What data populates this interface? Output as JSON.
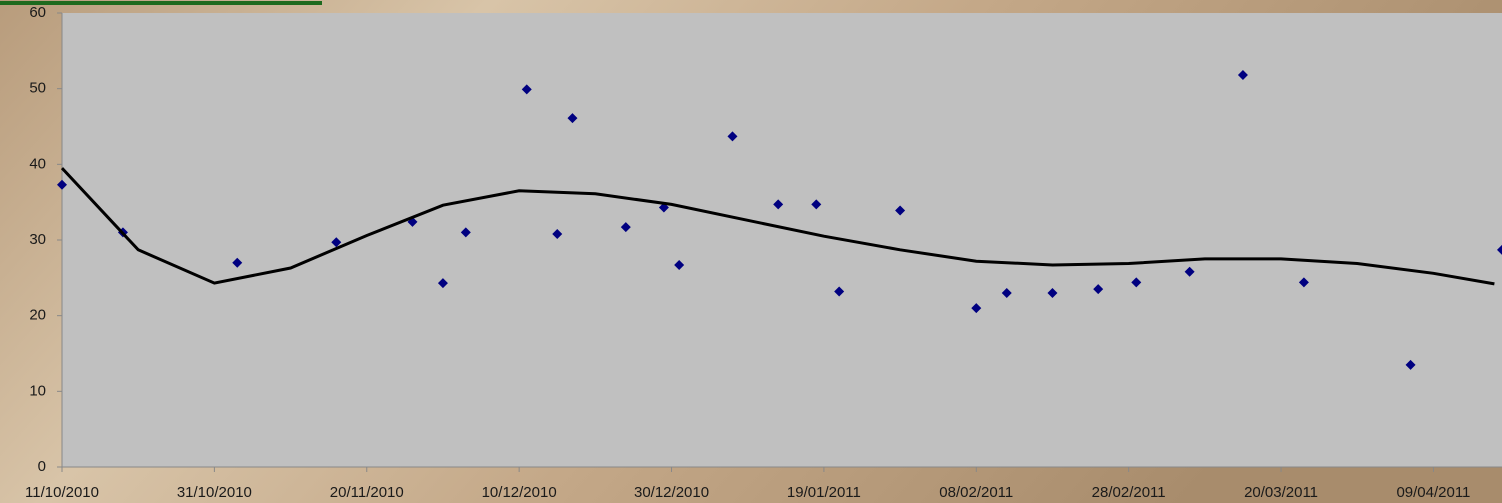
{
  "chart_data": {
    "type": "scatter",
    "xlim": [
      "2010-10-11",
      "2011-04-18"
    ],
    "ylim": [
      0,
      60
    ],
    "yticks": [
      0,
      10,
      20,
      30,
      40,
      50,
      60
    ],
    "xticks": [
      {
        "value": "2010-10-11",
        "label": "11/10/2010"
      },
      {
        "value": "2010-10-31",
        "label": "31/10/2010"
      },
      {
        "value": "2010-11-20",
        "label": "20/11/2010"
      },
      {
        "value": "2010-12-10",
        "label": "10/12/2010"
      },
      {
        "value": "2010-12-30",
        "label": "30/12/2010"
      },
      {
        "value": "2011-01-19",
        "label": "19/01/2011"
      },
      {
        "value": "2011-02-08",
        "label": "08/02/2011"
      },
      {
        "value": "2011-02-28",
        "label": "28/02/2011"
      },
      {
        "value": "2011-03-20",
        "label": "20/03/2011"
      },
      {
        "value": "2011-04-09",
        "label": "09/04/2011"
      }
    ],
    "series": [
      {
        "color": "#000080",
        "x": [
          "2010-10-11",
          "2010-10-19",
          "2010-11-03",
          "2010-11-16",
          "2010-11-26",
          "2010-11-30",
          "2010-12-03",
          "2010-12-11",
          "2010-12-15",
          "2010-12-17",
          "2010-12-24",
          "2010-12-29",
          "2010-12-31",
          "2011-01-07",
          "2011-01-13",
          "2011-01-18",
          "2011-01-21",
          "2011-01-29",
          "2011-02-08",
          "2011-02-12",
          "2011-02-18",
          "2011-02-24",
          "2011-03-01",
          "2011-03-08",
          "2011-03-15",
          "2011-03-23",
          "2011-04-06",
          "2011-04-18"
        ],
        "values": [
          37.3,
          31.0,
          27.0,
          29.7,
          32.4,
          24.3,
          31.0,
          49.9,
          30.8,
          46.1,
          31.7,
          34.3,
          26.7,
          43.7,
          34.7,
          34.7,
          23.2,
          33.9,
          21.0,
          23.0,
          23.0,
          23.5,
          24.4,
          25.8,
          51.8,
          24.4,
          13.5,
          28.7
        ]
      }
    ],
    "trendline": {
      "color": "#000000",
      "x": [
        "2010-10-11",
        "2010-10-21",
        "2010-10-31",
        "2010-11-10",
        "2010-11-20",
        "2010-11-30",
        "2010-12-10",
        "2010-12-20",
        "2010-12-30",
        "2011-01-09",
        "2011-01-19",
        "2011-01-29",
        "2011-02-08",
        "2011-02-18",
        "2011-02-28",
        "2011-03-10",
        "2011-03-20",
        "2011-03-30",
        "2011-04-09",
        "2011-04-17"
      ],
      "values": [
        39.5,
        28.7,
        24.3,
        26.3,
        30.6,
        34.6,
        36.5,
        36.1,
        34.7,
        32.6,
        30.5,
        28.7,
        27.2,
        26.7,
        26.9,
        27.5,
        27.5,
        26.9,
        25.6,
        24.2
      ]
    }
  }
}
